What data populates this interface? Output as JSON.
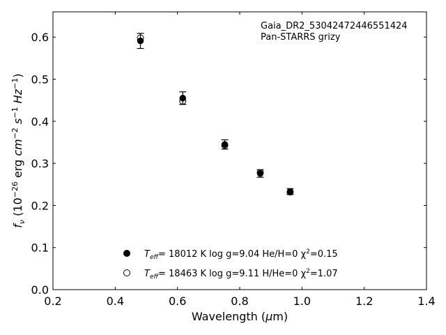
{
  "chart_data": {
    "type": "scatter",
    "title": "",
    "xlabel": "Wavelength (μm)",
    "ylabel": "fν (10⁻²⁶ erg cm⁻² s⁻¹ Hz⁻¹)",
    "xlim": [
      0.2,
      1.4
    ],
    "ylim": [
      0.0,
      0.66
    ],
    "xticks": [
      0.2,
      0.4,
      0.6,
      0.8,
      1.0,
      1.2,
      1.4
    ],
    "xtick_labels": [
      "0.2",
      "0.4",
      "0.6",
      "0.8",
      "1.0",
      "1.2",
      "1.4"
    ],
    "yticks": [
      0.0,
      0.1,
      0.2,
      0.3,
      0.4,
      0.5,
      0.6
    ],
    "ytick_labels": [
      "0.0",
      "0.1",
      "0.2",
      "0.3",
      "0.4",
      "0.5",
      "0.6"
    ],
    "annotation": {
      "object": "Gaia_DR2_530424724465514​24",
      "survey": "Pan-STARRS grizy"
    },
    "observed": {
      "x": [
        0.481,
        0.617,
        0.752,
        0.866,
        0.962
      ],
      "y": [
        0.591,
        0.455,
        0.345,
        0.276,
        0.233
      ],
      "yerr": [
        0.018,
        0.015,
        0.011,
        0.009,
        0.007
      ],
      "legend": "Teff= 18012 K  log g=9.04  He/H=0  χ²=0.15"
    },
    "model": {
      "x": [
        0.481,
        0.617,
        0.752,
        0.866,
        0.962
      ],
      "y": [
        0.598,
        0.448,
        0.343,
        0.278,
        0.232
      ],
      "legend": "Teff= 18463 K  log g=9.11  H/He=0  χ²=1.07"
    },
    "legend": {
      "placement": "lower-center",
      "entries": [
        {
          "teff_sub": "eff",
          "text": "= 18012 K  log g=9.04  He/H=0  χ",
          "chi_tail": "=0.15"
        },
        {
          "teff_sub": "eff",
          "text": "= 18463 K  log g=9.11  H/He=0  χ",
          "chi_tail": "=1.07"
        }
      ]
    }
  }
}
